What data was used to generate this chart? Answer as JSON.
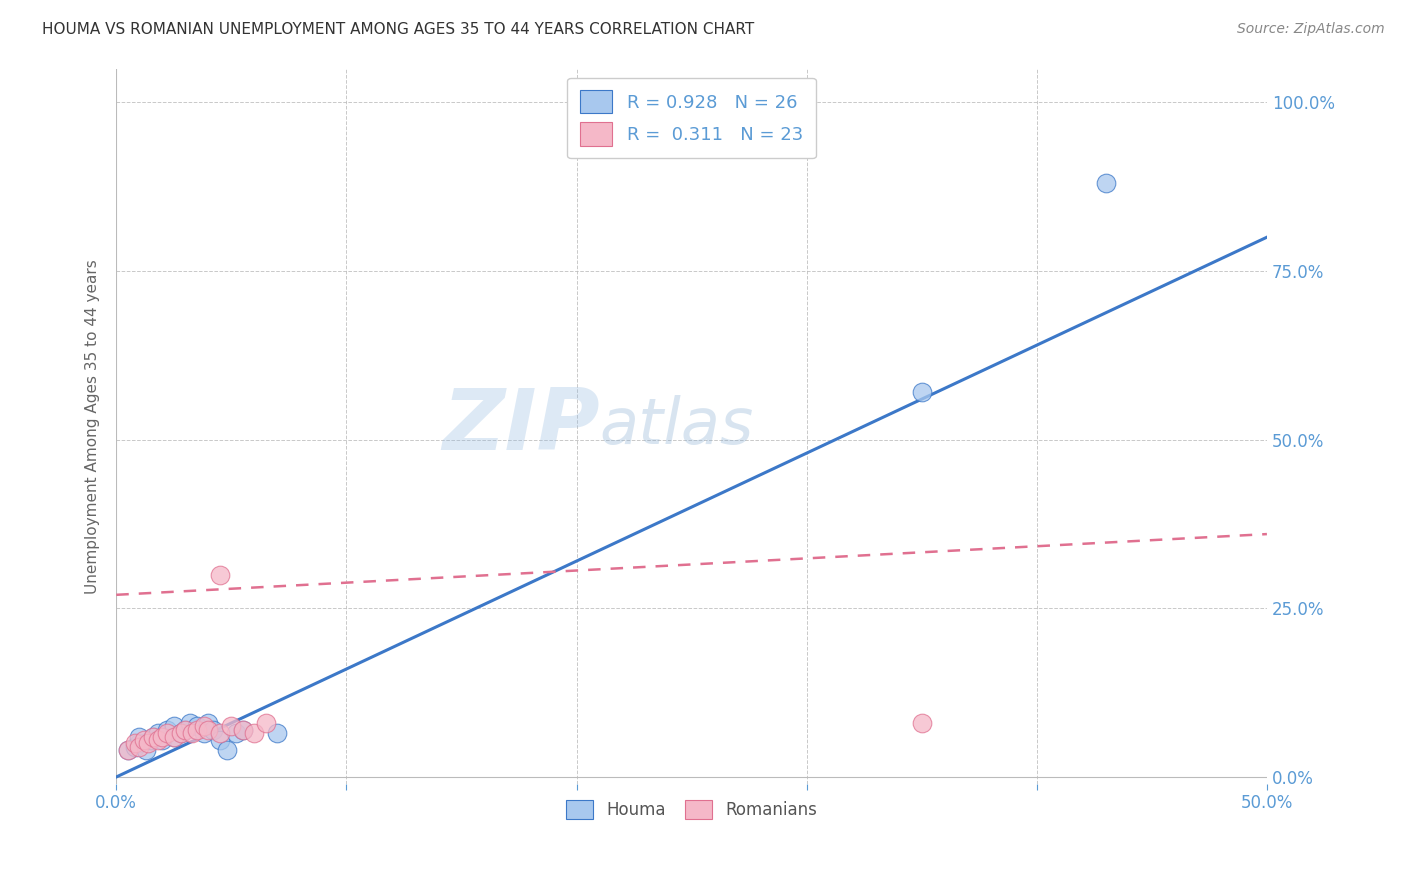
{
  "title": "HOUMA VS ROMANIAN UNEMPLOYMENT AMONG AGES 35 TO 44 YEARS CORRELATION CHART",
  "source": "Source: ZipAtlas.com",
  "ylabel": "Unemployment Among Ages 35 to 44 years",
  "xlim": [
    0,
    0.5
  ],
  "ylim": [
    -0.01,
    1.05
  ],
  "houma_color": "#A8C8EE",
  "romanian_color": "#F5B8C8",
  "houma_line_color": "#3C78C8",
  "romanian_line_color": "#E07090",
  "houma_R": 0.928,
  "houma_N": 26,
  "romanian_R": 0.311,
  "romanian_N": 23,
  "legend_label_houma": "Houma",
  "legend_label_romanian": "Romanians",
  "watermark_zip": "ZIP",
  "watermark_atlas": "atlas",
  "background_color": "#FFFFFF",
  "grid_color": "#BBBBBB",
  "title_color": "#333333",
  "axis_color": "#5B9BD5",
  "houma_x": [
    0.005,
    0.008,
    0.01,
    0.01,
    0.013,
    0.015,
    0.016,
    0.018,
    0.02,
    0.022,
    0.025,
    0.025,
    0.028,
    0.03,
    0.032,
    0.035,
    0.038,
    0.04,
    0.042,
    0.045,
    0.048,
    0.052,
    0.055,
    0.07,
    0.35,
    0.43
  ],
  "houma_y": [
    0.04,
    0.045,
    0.05,
    0.06,
    0.04,
    0.055,
    0.06,
    0.065,
    0.055,
    0.07,
    0.06,
    0.075,
    0.065,
    0.07,
    0.08,
    0.075,
    0.065,
    0.08,
    0.07,
    0.055,
    0.04,
    0.065,
    0.07,
    0.065,
    0.57,
    0.88
  ],
  "romanian_x": [
    0.005,
    0.008,
    0.01,
    0.012,
    0.014,
    0.016,
    0.018,
    0.02,
    0.022,
    0.025,
    0.028,
    0.03,
    0.033,
    0.035,
    0.038,
    0.04,
    0.045,
    0.05,
    0.055,
    0.06,
    0.065,
    0.35,
    0.045
  ],
  "romanian_y": [
    0.04,
    0.05,
    0.045,
    0.055,
    0.05,
    0.06,
    0.055,
    0.06,
    0.065,
    0.06,
    0.065,
    0.07,
    0.065,
    0.07,
    0.075,
    0.07,
    0.065,
    0.075,
    0.07,
    0.065,
    0.08,
    0.08,
    0.3
  ]
}
